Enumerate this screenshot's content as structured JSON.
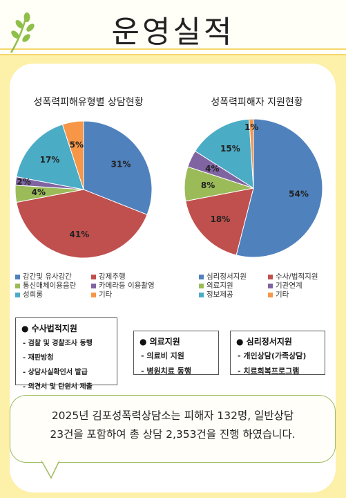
{
  "header": {
    "title": "운영실적"
  },
  "chart_data": [
    {
      "type": "pie",
      "title": "성폭력피해유형별 상담현황",
      "categories": [
        "강간및 유사강간",
        "강제추행",
        "통신매체이용음란",
        "카메라등 이용촬영",
        "성희롱",
        "기타"
      ],
      "values": [
        31,
        41,
        4,
        2,
        17,
        5
      ],
      "labels": [
        "31%",
        "41%",
        "4%",
        "2%",
        "17%",
        "5%"
      ],
      "colors": [
        "#4f81bd",
        "#c0504d",
        "#9bbb59",
        "#8064a2",
        "#4bacc6",
        "#f79646"
      ],
      "legend_placement": "bottom"
    },
    {
      "type": "pie",
      "title": "성폭력피해자 지원현황",
      "categories": [
        "심리정서지원",
        "수사/법적지원",
        "의료지원",
        "기관연계",
        "정보제공",
        "기타"
      ],
      "values": [
        54,
        18,
        8,
        4,
        15,
        1
      ],
      "labels": [
        "54%",
        "18%",
        "8%",
        "4%",
        "15%",
        "1%"
      ],
      "colors": [
        "#4f81bd",
        "#c0504d",
        "#9bbb59",
        "#8064a2",
        "#4bacc6",
        "#f79646"
      ],
      "legend_placement": "bottom"
    }
  ],
  "support_boxes": {
    "legal": {
      "title": "수사법적지원",
      "items": [
        "- 검찰 및 경찰조사 동행",
        "- 재판방청",
        "- 상담사실확인서 발급",
        "- 의견서 및 탄원서 제출"
      ]
    },
    "medical": {
      "title": "의료지원",
      "items": [
        "- 의료비 지원",
        "- 병원치료 동행"
      ]
    },
    "psych": {
      "title": "심리정서지원",
      "items": [
        "- 개인상담(가족상담)",
        "- 치료회복프로그램"
      ]
    }
  },
  "summary": {
    "line1": "2025년 김포성폭력상담소는 피해자 132명, 일반상담",
    "line2": "23건을 포함하여 총 상담 2,353건을 진행 하였습니다."
  }
}
